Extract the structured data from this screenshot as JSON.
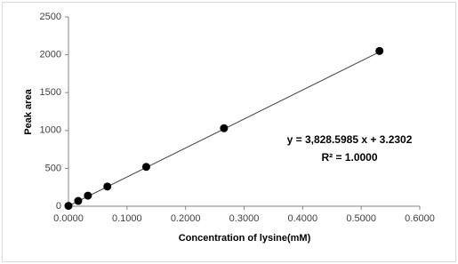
{
  "chart_data": {
    "type": "scatter",
    "x_label": "Concentration of lysine(mM)",
    "y_label": "Peak area",
    "annotations": [
      "y = 3,828.5985 x + 3.2302",
      "R² = 1.0000"
    ],
    "x": [
      0,
      0.0166,
      0.0332,
      0.0664,
      0.1328,
      0.2656,
      0.5312
    ],
    "values": [
      5,
      70,
      140,
      260,
      520,
      1030,
      2050
    ],
    "color": "#000000",
    "trendline": {
      "slope": 3828.5985,
      "intercept": 3.2302,
      "color": "#404040"
    },
    "xlim": [
      0,
      0.6
    ],
    "xticks": [
      {
        "value": 0,
        "label": "0.0000"
      },
      {
        "value": 0.1,
        "label": "0.1000"
      },
      {
        "value": 0.2,
        "label": "0.2000"
      },
      {
        "value": 0.3,
        "label": "0.3000"
      },
      {
        "value": 0.4,
        "label": "0.4000"
      },
      {
        "value": 0.5,
        "label": "0.5000"
      },
      {
        "value": 0.6,
        "label": "0.6000"
      }
    ],
    "ylim": [
      0,
      2500
    ],
    "yticks": [
      0,
      500,
      1000,
      1500,
      2000,
      2500
    ],
    "grid": false
  }
}
